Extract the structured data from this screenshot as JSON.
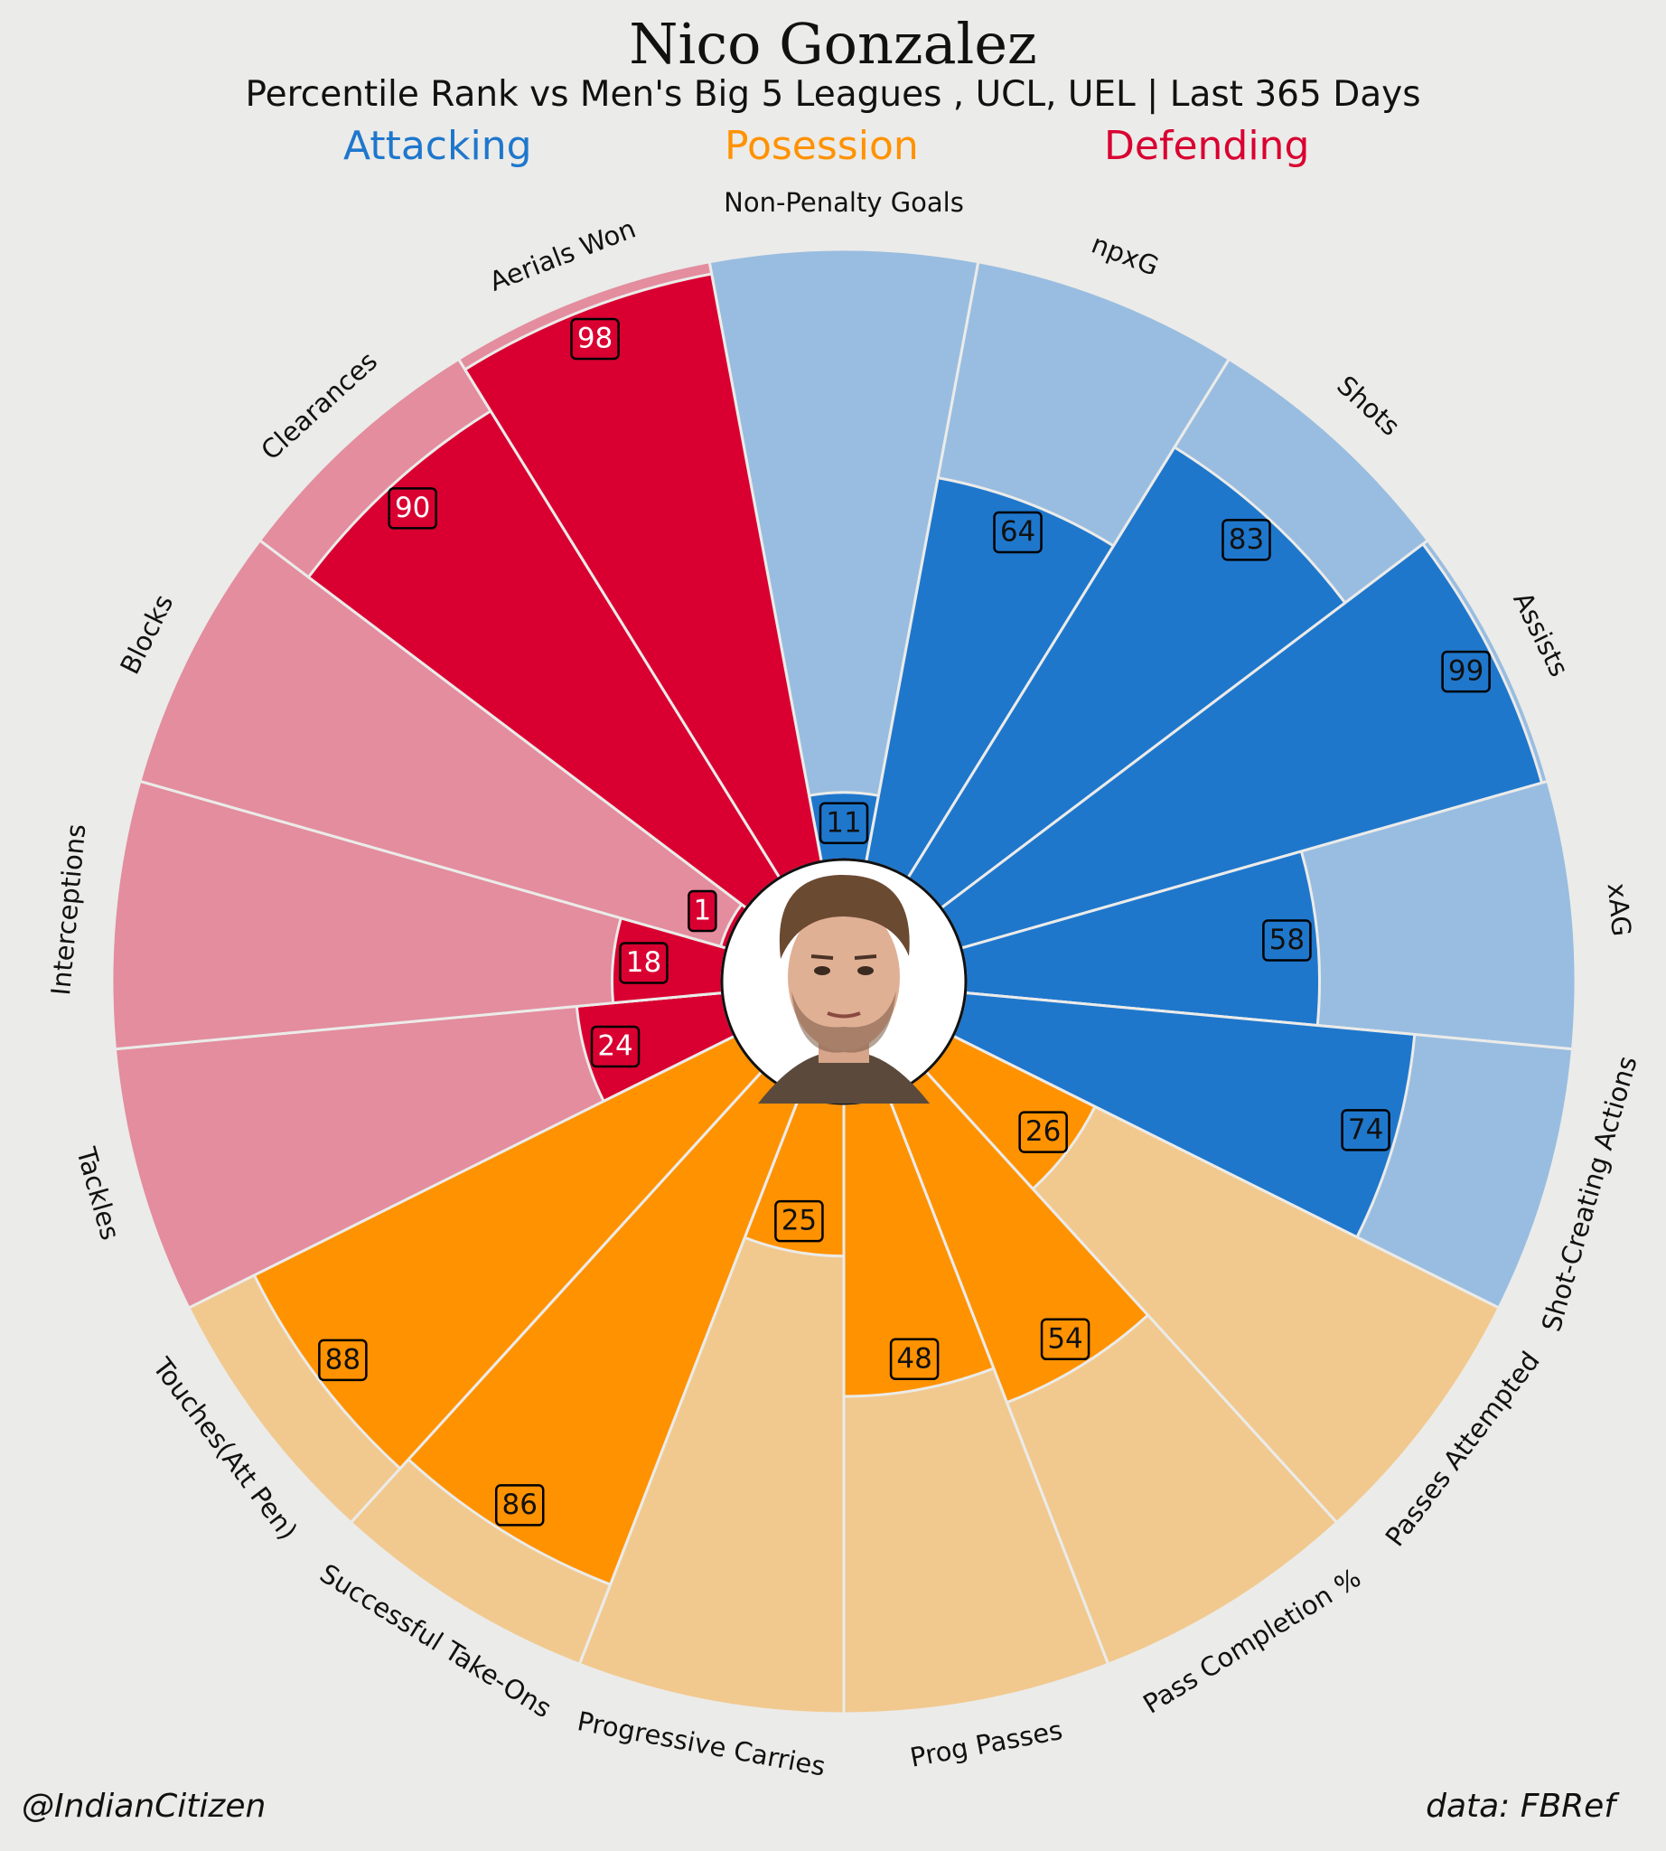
{
  "header": {
    "title": "Nico Gonzalez",
    "subtitle": "Percentile Rank vs Men's Big 5 Leagues , UCL, UEL | Last 365 Days"
  },
  "categories": {
    "attacking": "Attacking",
    "possession": "Posession",
    "defending": "Defending"
  },
  "colors": {
    "attacking": "#1f77cc",
    "attacking_light": "#99bde0",
    "possession": "#ff9200",
    "possession_light": "#f1c98f",
    "defending": "#d90031",
    "defending_light": "#e38d9e",
    "background": "#ebebe9"
  },
  "chart_data": {
    "type": "radar-bar",
    "value_range": [
      0,
      100
    ],
    "metrics": [
      {
        "label": "Non-Penalty Goals",
        "value": 11,
        "group": "attacking"
      },
      {
        "label": "npxG",
        "value": 64,
        "group": "attacking"
      },
      {
        "label": "Shots",
        "value": 83,
        "group": "attacking"
      },
      {
        "label": "Assists",
        "value": 99,
        "group": "attacking"
      },
      {
        "label": "xAG",
        "value": 58,
        "group": "attacking"
      },
      {
        "label": "Shot-Creating Actions",
        "value": 74,
        "group": "attacking"
      },
      {
        "label": "Passes Attempted",
        "value": 26,
        "group": "possession"
      },
      {
        "label": "Pass Completion %",
        "value": 54,
        "group": "possession"
      },
      {
        "label": "Prog Passes",
        "value": 48,
        "group": "possession"
      },
      {
        "label": "Progressive Carries",
        "value": 25,
        "group": "possession"
      },
      {
        "label": "Successful Take-Ons",
        "value": 86,
        "group": "possession"
      },
      {
        "label": "Touches(Att Pen)",
        "value": 88,
        "group": "possession"
      },
      {
        "label": "Tackles",
        "value": 24,
        "group": "defending"
      },
      {
        "label": "Interceptions",
        "value": 18,
        "group": "defending"
      },
      {
        "label": "Blocks",
        "value": 1,
        "group": "defending"
      },
      {
        "label": "Clearances",
        "value": 90,
        "group": "defending"
      },
      {
        "label": "Aerials Won",
        "value": 98,
        "group": "defending"
      }
    ]
  },
  "footer": {
    "credit": "@IndianCitizen",
    "source": "data: FBRef"
  }
}
